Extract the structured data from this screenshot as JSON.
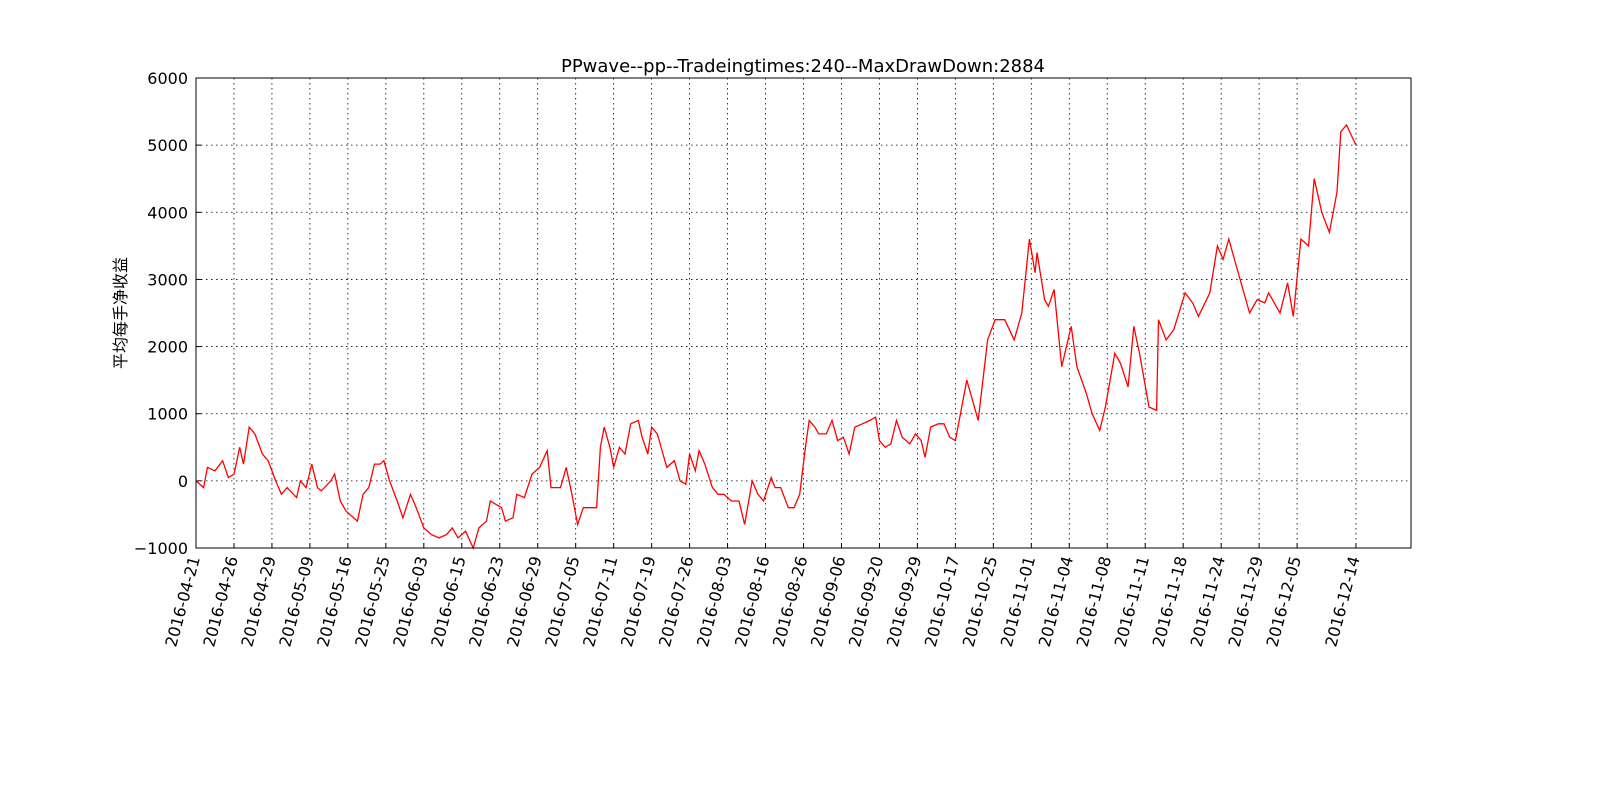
{
  "chart_data": {
    "type": "line",
    "title": "PPwave--pp--Tradeingtimes:240--MaxDrawDown:2884",
    "ylabel": "平均每手净收益",
    "color": "#ff0000",
    "grid": true,
    "xlim": [
      0,
      640
    ],
    "ylim": [
      -1000,
      6000
    ],
    "yticks": [
      {
        "value": -1000,
        "label": "−1000"
      },
      0,
      1000,
      2000,
      3000,
      4000,
      5000,
      6000
    ],
    "xticks": [
      {
        "value": 0,
        "label": "2016-04-21"
      },
      {
        "value": 20,
        "label": "2016-04-26"
      },
      {
        "value": 40,
        "label": "2016-04-29"
      },
      {
        "value": 60,
        "label": "2016-05-09"
      },
      {
        "value": 80,
        "label": "2016-05-16"
      },
      {
        "value": 100,
        "label": "2016-05-25"
      },
      {
        "value": 120,
        "label": "2016-06-03"
      },
      {
        "value": 140,
        "label": "2016-06-15"
      },
      {
        "value": 160,
        "label": "2016-06-23"
      },
      {
        "value": 180,
        "label": "2016-06-29"
      },
      {
        "value": 200,
        "label": "2016-07-05"
      },
      {
        "value": 220,
        "label": "2016-07-11"
      },
      {
        "value": 240,
        "label": "2016-07-19"
      },
      {
        "value": 260,
        "label": "2016-07-26"
      },
      {
        "value": 280,
        "label": "2016-08-03"
      },
      {
        "value": 300,
        "label": "2016-08-16"
      },
      {
        "value": 320,
        "label": "2016-08-26"
      },
      {
        "value": 340,
        "label": "2016-09-06"
      },
      {
        "value": 360,
        "label": "2016-09-20"
      },
      {
        "value": 380,
        "label": "2016-09-29"
      },
      {
        "value": 400,
        "label": "2016-10-17"
      },
      {
        "value": 420,
        "label": "2016-10-25"
      },
      {
        "value": 440,
        "label": "2016-11-01"
      },
      {
        "value": 460,
        "label": "2016-11-04"
      },
      {
        "value": 480,
        "label": "2016-11-08"
      },
      {
        "value": 500,
        "label": "2016-11-11"
      },
      {
        "value": 520,
        "label": "2016-11-18"
      },
      {
        "value": 540,
        "label": "2016-11-24"
      },
      {
        "value": 560,
        "label": "2016-11-29"
      },
      {
        "value": 580,
        "label": "2016-12-05"
      },
      {
        "value": 611,
        "label": "2016-12-14"
      }
    ],
    "x": [
      0,
      4,
      6,
      10,
      14,
      17,
      20,
      23,
      25,
      28,
      31,
      35,
      38,
      42,
      45,
      48,
      53,
      55,
      58,
      61,
      64,
      66,
      71,
      73,
      76,
      79,
      85,
      88,
      91,
      94,
      97,
      99,
      102,
      106,
      109,
      113,
      116,
      120,
      124,
      128,
      132,
      135,
      138,
      142,
      146,
      149,
      153,
      155,
      158,
      161,
      163,
      167,
      169,
      173,
      177,
      181,
      185,
      187,
      192,
      195,
      198,
      201,
      204,
      207,
      211,
      213,
      215,
      218,
      220,
      223,
      226,
      229,
      233,
      235,
      238,
      240,
      243,
      246,
      248,
      252,
      255,
      258,
      260,
      263,
      265,
      268,
      272,
      275,
      278,
      282,
      286,
      289,
      293,
      296,
      299,
      303,
      305,
      308,
      312,
      315,
      318,
      321,
      323,
      326,
      328,
      332,
      335,
      338,
      341,
      344,
      347,
      351,
      355,
      358,
      360,
      363,
      366,
      369,
      372,
      376,
      379,
      382,
      384,
      387,
      391,
      394,
      397,
      400,
      406,
      412,
      417,
      421,
      426,
      431,
      435,
      439,
      442,
      443,
      447,
      449,
      452,
      456,
      461,
      464,
      469,
      472,
      476,
      479,
      484,
      487,
      491,
      494,
      497,
      502,
      506,
      507,
      511,
      515,
      521,
      525,
      528,
      534,
      538,
      541,
      544,
      548,
      551,
      555,
      559,
      563,
      565,
      571,
      575,
      578,
      582,
      586,
      589,
      593,
      597,
      601,
      603,
      606,
      611
    ],
    "values": [
      0,
      -100,
      200,
      150,
      300,
      50,
      100,
      500,
      250,
      800,
      700,
      400,
      300,
      0,
      -200,
      -100,
      -250,
      0,
      -100,
      250,
      -100,
      -150,
      0,
      100,
      -300,
      -450,
      -600,
      -200,
      -100,
      250,
      250,
      300,
      0,
      -300,
      -550,
      -200,
      -400,
      -700,
      -800,
      -850,
      -800,
      -700,
      -850,
      -750,
      -1000,
      -700,
      -600,
      -300,
      -350,
      -400,
      -600,
      -550,
      -200,
      -250,
      100,
      200,
      450,
      -100,
      -100,
      200,
      -200,
      -650,
      -400,
      -400,
      -400,
      500,
      800,
      500,
      200,
      500,
      400,
      850,
      900,
      650,
      400,
      800,
      700,
      400,
      200,
      300,
      0,
      -50,
      400,
      150,
      450,
      250,
      -100,
      -200,
      -200,
      -300,
      -300,
      -650,
      0,
      -200,
      -300,
      50,
      -100,
      -100,
      -400,
      -400,
      -200,
      500,
      900,
      800,
      700,
      700,
      900,
      600,
      650,
      400,
      800,
      850,
      900,
      950,
      600,
      500,
      550,
      900,
      650,
      550,
      700,
      600,
      350,
      800,
      850,
      850,
      650,
      600,
      1500,
      900,
      2100,
      2400,
      2400,
      2100,
      2500,
      3600,
      3100,
      3400,
      2700,
      2600,
      2850,
      1700,
      2300,
      1700,
      1300,
      1000,
      750,
      1100,
      1900,
      1750,
      1400,
      2300,
      1900,
      1100,
      1050,
      2400,
      2100,
      2250,
      2800,
      2650,
      2450,
      2800,
      3500,
      3300,
      3600,
      3200,
      2900,
      2500,
      2700,
      2650,
      2800,
      2500,
      2950,
      2450,
      3600,
      3500,
      4500,
      4000,
      3700,
      4300,
      5200,
      5300,
      5000
    ]
  }
}
